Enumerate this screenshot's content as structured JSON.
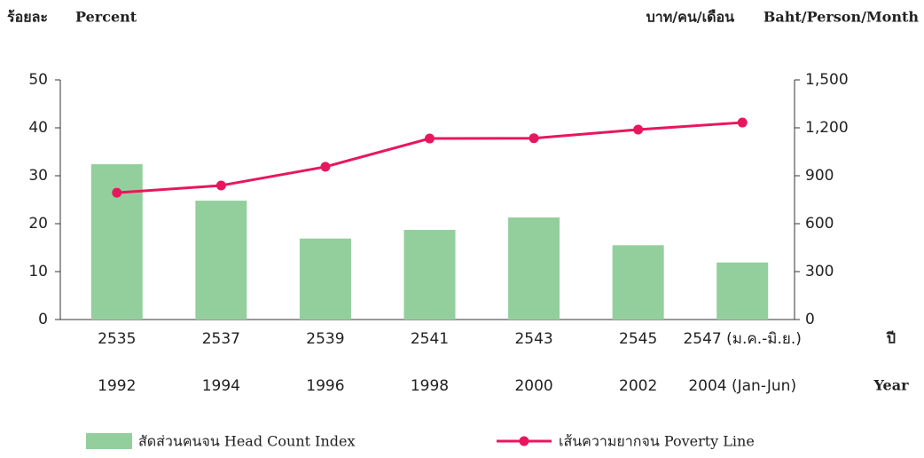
{
  "chart_data": {
    "type": "bar_line",
    "left_unit_th": "ร้อยละ",
    "left_unit_en": "Percent",
    "right_unit_th": "บาท/คน/เดือน",
    "right_unit_en": "Baht/Person/Month",
    "x_label_th": "ปี",
    "x_label_en": "Year",
    "categories": [
      "2535",
      "2537",
      "2539",
      "2541",
      "2543",
      "2545",
      "2547 (ม.ค.-มิ.ย.)"
    ],
    "categories_en": [
      "1992",
      "1994",
      "1996",
      "1998",
      "2000",
      "2002",
      "2004 (Jan-Jun)"
    ],
    "series": [
      {
        "name": "สัดส่วนคนจน  Head Count Index",
        "color": "#93cf9d",
        "values": [
          32.4,
          24.8,
          16.9,
          18.7,
          21.3,
          15.5,
          11.9
        ]
      },
      {
        "name": "เส้นความยากจน  Poverty Line",
        "color": "#e8175d",
        "axis": "y2",
        "values": [
          794,
          839,
          956,
          1133,
          1135,
          1189,
          1233
        ]
      }
    ],
    "ylim": [
      0,
      50
    ],
    "yticks": [
      0,
      10,
      20,
      30,
      40,
      50
    ],
    "y2lim": [
      0,
      1500
    ],
    "y2ticks": [
      0,
      300,
      600,
      900,
      {
        "value": 1200,
        "label": "1,200"
      },
      {
        "value": 1500,
        "label": "1,500"
      }
    ]
  }
}
